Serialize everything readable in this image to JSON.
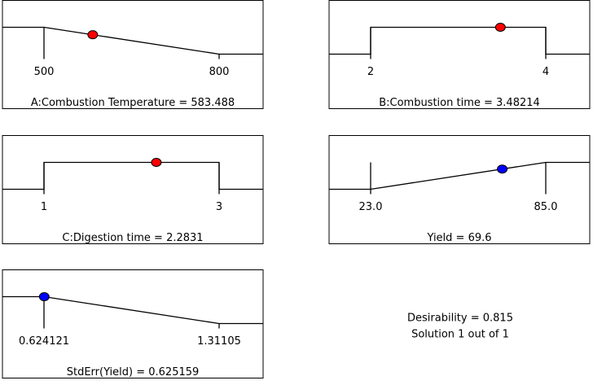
{
  "chart_data": [
    {
      "type": "ramp",
      "goal": "minimize",
      "title": "A:Combustion Temperature = 583.488",
      "value": 583.488,
      "color": "#ff0000",
      "xlim": [
        500,
        800
      ],
      "xticks": [
        500,
        800
      ]
    },
    {
      "type": "ramp",
      "goal": "range",
      "title": "B:Combustion time = 3.48214",
      "value": 3.48214,
      "color": "#ff0000",
      "xlim": [
        2,
        4
      ],
      "xticks": [
        2,
        4
      ]
    },
    {
      "type": "ramp",
      "goal": "range",
      "title": "C:Digestion time = 2.2831",
      "value": 2.2831,
      "color": "#ff0000",
      "xlim": [
        1,
        3
      ],
      "xticks": [
        1,
        3
      ]
    },
    {
      "type": "ramp",
      "goal": "maximize",
      "title": "Yield = 69.6",
      "value": 69.6,
      "color": "#0000ff",
      "xlim": [
        23,
        85
      ],
      "xticks": [
        {
          "value": 23,
          "label": "23.0"
        },
        {
          "value": 85,
          "label": "85.0"
        }
      ]
    },
    {
      "type": "ramp",
      "goal": "minimize",
      "title": "StdErr(Yield) = 0.625159",
      "value": 0.625159,
      "color": "#0000ff",
      "xlim": [
        0.624121,
        1.31105
      ],
      "xticks": [
        0.624121,
        1.31105
      ]
    }
  ],
  "desirability": "Desirability = 0.815",
  "solution": "Solution 1 out of 1"
}
